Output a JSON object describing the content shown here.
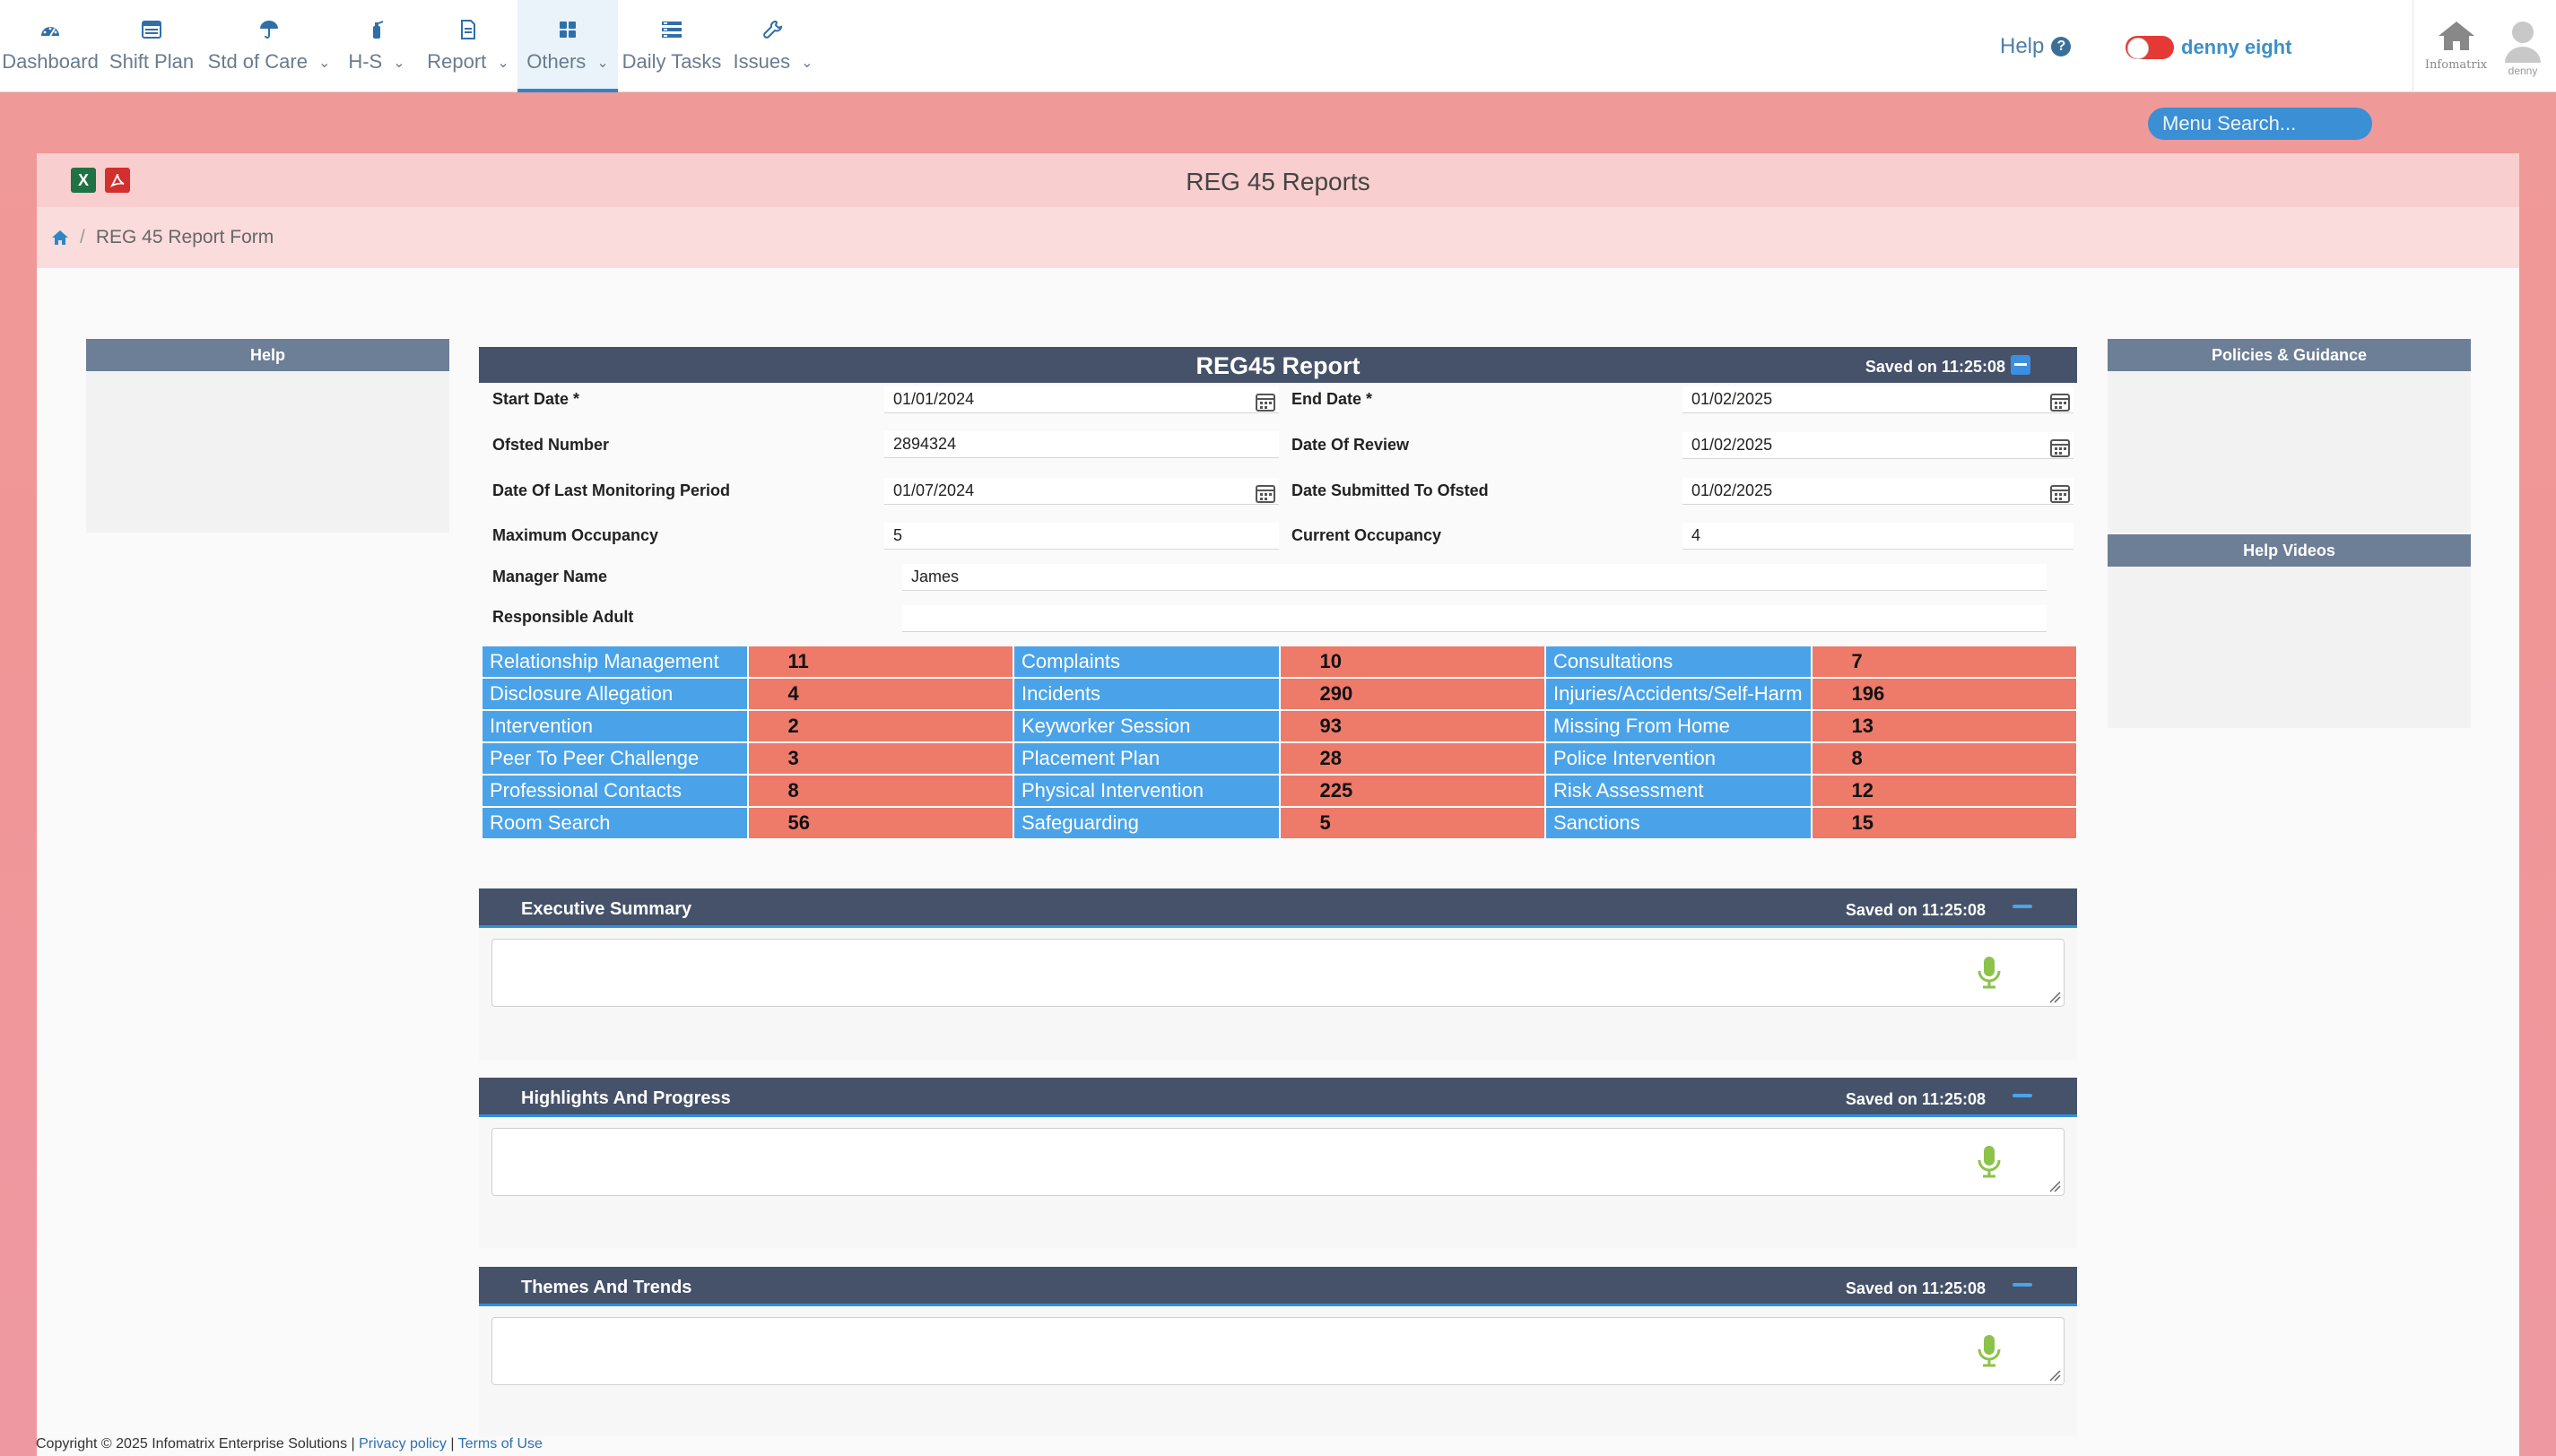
{
  "nav": {
    "items": [
      {
        "label": "Dashboard",
        "icon": "dashboard-gauge-icon",
        "has_dropdown": false
      },
      {
        "label": "Shift Plan",
        "icon": "shift-plan-list-icon",
        "has_dropdown": false
      },
      {
        "label": "Std of Care",
        "icon": "umbrella-icon",
        "has_dropdown": true
      },
      {
        "label": "H-S",
        "icon": "fire-extinguisher-icon",
        "has_dropdown": true
      },
      {
        "label": "Report",
        "icon": "report-document-icon",
        "has_dropdown": true
      },
      {
        "label": "Others",
        "icon": "grid-icon",
        "has_dropdown": true,
        "active": true
      },
      {
        "label": "Daily Tasks",
        "icon": "tasks-list-icon",
        "has_dropdown": false
      },
      {
        "label": "Issues",
        "icon": "wrench-icon",
        "has_dropdown": true
      }
    ],
    "help_label": "Help",
    "user_name": "denny eight",
    "brand_label": "Infomatrix",
    "avatar_label": "denny"
  },
  "menu_search": {
    "placeholder": "Menu Search..."
  },
  "page": {
    "title": "REG 45 Reports",
    "breadcrumb_current": "REG 45 Report Form"
  },
  "sidebar_left": {
    "help_title": "Help"
  },
  "sidebar_right": {
    "policies_title": "Policies & Guidance",
    "videos_title": "Help Videos"
  },
  "report": {
    "title": "REG45 Report",
    "saved": "Saved on 11:25:08",
    "fields": {
      "start_date": {
        "label": "Start Date *",
        "value": "01/01/2024"
      },
      "end_date": {
        "label": "End Date *",
        "value": "01/02/2025"
      },
      "ofsted_number": {
        "label": "Ofsted Number",
        "value": "2894324"
      },
      "date_of_review": {
        "label": "Date Of Review",
        "value": "01/02/2025"
      },
      "last_monitoring": {
        "label": "Date Of Last Monitoring Period",
        "value": "01/07/2024"
      },
      "submitted_to_ofsted": {
        "label": "Date Submitted To Ofsted",
        "value": "01/02/2025"
      },
      "max_occupancy": {
        "label": "Maximum Occupancy",
        "value": "5"
      },
      "current_occupancy": {
        "label": "Current Occupancy",
        "value": "4"
      },
      "manager_name": {
        "label": "Manager Name",
        "value": "James"
      },
      "responsible_adult": {
        "label": "Responsible Adult",
        "value": ""
      }
    },
    "stats": [
      [
        {
          "label": "Relationship Management",
          "value": "11"
        },
        {
          "label": "Complaints",
          "value": "10"
        },
        {
          "label": "Consultations",
          "value": "7"
        }
      ],
      [
        {
          "label": "Disclosure Allegation",
          "value": "4"
        },
        {
          "label": "Incidents",
          "value": "290"
        },
        {
          "label": "Injuries/Accidents/Self-Harm",
          "value": "196"
        }
      ],
      [
        {
          "label": "Intervention",
          "value": "2"
        },
        {
          "label": "Keyworker Session",
          "value": "93"
        },
        {
          "label": "Missing From Home",
          "value": "13"
        }
      ],
      [
        {
          "label": "Peer To Peer Challenge",
          "value": "3"
        },
        {
          "label": "Placement Plan",
          "value": "28"
        },
        {
          "label": "Police Intervention",
          "value": "8"
        }
      ],
      [
        {
          "label": "Professional Contacts",
          "value": "8"
        },
        {
          "label": "Physical Intervention",
          "value": "225"
        },
        {
          "label": "Risk Assessment",
          "value": "12"
        }
      ],
      [
        {
          "label": "Room Search",
          "value": "56"
        },
        {
          "label": "Safeguarding",
          "value": "5"
        },
        {
          "label": "Sanctions",
          "value": "15"
        }
      ]
    ]
  },
  "sections": [
    {
      "title": "Executive Summary",
      "saved": "Saved on 11:25:08",
      "value": ""
    },
    {
      "title": "Highlights And Progress",
      "saved": "Saved on 11:25:08",
      "value": ""
    },
    {
      "title": "Themes And Trends",
      "saved": "Saved on 11:25:08",
      "value": ""
    }
  ],
  "footer": {
    "copyright": "Copyright © 2025 Infomatrix Enterprise Solutions |",
    "privacy": "Privacy policy",
    "sep": "|",
    "terms": "Terms of Use"
  },
  "colors": {
    "label_cell": "#4aa3e8",
    "value_cell": "#ee7a6a",
    "panel_header": "#45526a",
    "accent": "#2f8fe0",
    "toggle_off": "#e53935"
  }
}
